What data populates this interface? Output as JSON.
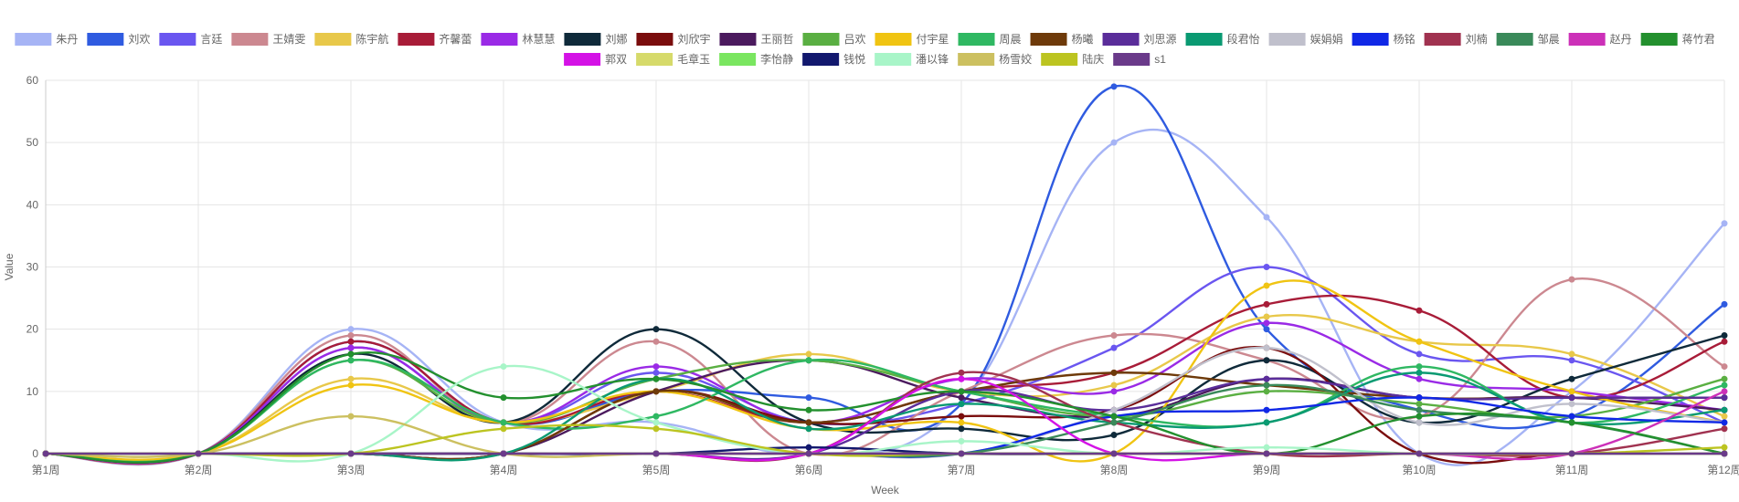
{
  "chart_data": {
    "type": "line",
    "xlabel": "Week",
    "ylabel": "Value",
    "ylim": [
      0,
      60
    ],
    "yticks": [
      0,
      10,
      20,
      30,
      40,
      50,
      60
    ],
    "grid": true,
    "legend_position": "top",
    "categories": [
      "第1周",
      "第2周",
      "第3周",
      "第4周",
      "第5周",
      "第6周",
      "第7周",
      "第8周",
      "第9周",
      "第10周",
      "第11周",
      "第12周"
    ],
    "series": [
      {
        "name": "朱丹",
        "color": "#a6b4f5",
        "values": [
          0,
          0,
          20,
          5,
          5,
          0,
          8,
          50,
          38,
          0,
          10,
          37
        ]
      },
      {
        "name": "刘欢",
        "color": "#2f5be0",
        "values": [
          0,
          0,
          18,
          5,
          10,
          9,
          8,
          59,
          20,
          7,
          6,
          24
        ]
      },
      {
        "name": "言廷",
        "color": "#6a56f0",
        "values": [
          0,
          0,
          17,
          5,
          13,
          5,
          8,
          17,
          30,
          16,
          15,
          5
        ]
      },
      {
        "name": "王婧雯",
        "color": "#cc8890",
        "values": [
          0,
          0,
          19,
          5,
          18,
          0,
          10,
          19,
          15,
          6,
          28,
          14
        ]
      },
      {
        "name": "陈宇航",
        "color": "#e8c84a",
        "values": [
          0,
          0,
          12,
          5,
          10,
          16,
          10,
          11,
          22,
          18,
          16,
          6
        ]
      },
      {
        "name": "齐馨蕾",
        "color": "#a81c38",
        "values": [
          0,
          0,
          18,
          5,
          10,
          5,
          10,
          13,
          24,
          23,
          9,
          18
        ]
      },
      {
        "name": "林慧慧",
        "color": "#9a2ae6",
        "values": [
          0,
          0,
          17,
          5,
          14,
          5,
          12,
          10,
          21,
          12,
          10,
          7
        ]
      },
      {
        "name": "刘娜",
        "color": "#0f2a3a",
        "values": [
          0,
          0,
          16,
          5,
          20,
          5,
          4,
          3,
          15,
          5,
          12,
          19
        ]
      },
      {
        "name": "刘欣宇",
        "color": "#7a0d0d",
        "values": [
          0,
          0,
          0,
          0,
          10,
          5,
          6,
          7,
          17,
          0,
          0,
          0
        ]
      },
      {
        "name": "王丽哲",
        "color": "#4b1a5e",
        "values": [
          0,
          0,
          0,
          0,
          10,
          15,
          9,
          6,
          12,
          9,
          9,
          7
        ]
      },
      {
        "name": "吕欢",
        "color": "#5aaf42",
        "values": [
          0,
          0,
          15,
          5,
          12,
          15,
          10,
          6,
          10,
          8,
          6,
          12
        ]
      },
      {
        "name": "付宇星",
        "color": "#f0c412",
        "values": [
          0,
          0,
          11,
          5,
          10,
          4,
          5,
          0,
          27,
          18,
          10,
          5
        ]
      },
      {
        "name": "周晨",
        "color": "#2fb862",
        "values": [
          0,
          0,
          15,
          5,
          6,
          15,
          10,
          6,
          5,
          14,
          5,
          11
        ]
      },
      {
        "name": "杨曦",
        "color": "#6e3a0a",
        "values": [
          0,
          0,
          0,
          0,
          10,
          5,
          10,
          13,
          11,
          9,
          9,
          9
        ]
      },
      {
        "name": "刘思源",
        "color": "#5a2d9a",
        "values": [
          0,
          0,
          0,
          0,
          0,
          0,
          10,
          7,
          12,
          9,
          9,
          9
        ]
      },
      {
        "name": "段君怡",
        "color": "#0a9a72",
        "values": [
          0,
          0,
          0,
          0,
          12,
          4,
          8,
          5,
          5,
          13,
          5,
          7
        ]
      },
      {
        "name": "娱娟娟",
        "color": "#c0c0cc",
        "values": [
          0,
          0,
          0,
          0,
          0,
          0,
          0,
          7,
          17,
          5,
          8,
          5
        ]
      },
      {
        "name": "杨铭",
        "color": "#1028e6",
        "values": [
          0,
          0,
          0,
          0,
          0,
          0,
          0,
          6,
          7,
          9,
          6,
          5
        ]
      },
      {
        "name": "刘楠",
        "color": "#a03250",
        "values": [
          0,
          0,
          0,
          0,
          0,
          0,
          13,
          5,
          0,
          0,
          0,
          4
        ]
      },
      {
        "name": "邹晨",
        "color": "#3a8a5a",
        "values": [
          0,
          0,
          0,
          0,
          0,
          0,
          0,
          5,
          11,
          7,
          5,
          0
        ]
      },
      {
        "name": "赵丹",
        "color": "#cc30b8",
        "values": [
          0,
          0,
          0,
          0,
          0,
          0,
          0,
          0,
          0,
          0,
          0,
          10
        ]
      },
      {
        "name": "蒋竹君",
        "color": "#23902e",
        "values": [
          0,
          0,
          16,
          9,
          12,
          7,
          10,
          6,
          0,
          6,
          5,
          0
        ]
      },
      {
        "name": "郭双",
        "color": "#d412e6",
        "values": [
          0,
          0,
          0,
          0,
          0,
          0,
          12,
          0,
          0,
          0,
          0,
          0
        ]
      },
      {
        "name": "毛章玉",
        "color": "#d6da6a",
        "values": [
          0,
          0,
          0,
          0,
          0,
          0,
          0,
          0,
          0,
          0,
          0,
          0
        ]
      },
      {
        "name": "李怡静",
        "color": "#7ae660",
        "values": [
          0,
          0,
          0,
          0,
          0,
          0,
          0,
          0,
          0,
          0,
          0,
          0
        ]
      },
      {
        "name": "钱悦",
        "color": "#12186e",
        "values": [
          0,
          0,
          0,
          0,
          0,
          1,
          0,
          0,
          0,
          0,
          0,
          0
        ]
      },
      {
        "name": "潘以锋",
        "color": "#a8f5c8",
        "values": [
          0,
          0,
          0,
          14,
          5,
          0,
          2,
          0,
          1,
          0,
          0,
          0
        ]
      },
      {
        "name": "杨雪姣",
        "color": "#ccc060",
        "values": [
          0,
          0,
          6,
          0,
          0,
          0,
          0,
          0,
          0,
          0,
          0,
          0
        ]
      },
      {
        "name": "陆庆",
        "color": "#bcc420",
        "values": [
          0,
          0,
          0,
          4,
          4,
          0,
          0,
          0,
          0,
          0,
          0,
          1
        ]
      },
      {
        "name": "s1",
        "color": "#6a3a8a",
        "values": [
          0,
          0,
          0,
          0,
          0,
          0,
          0,
          0,
          0,
          0,
          0,
          0
        ]
      }
    ]
  }
}
